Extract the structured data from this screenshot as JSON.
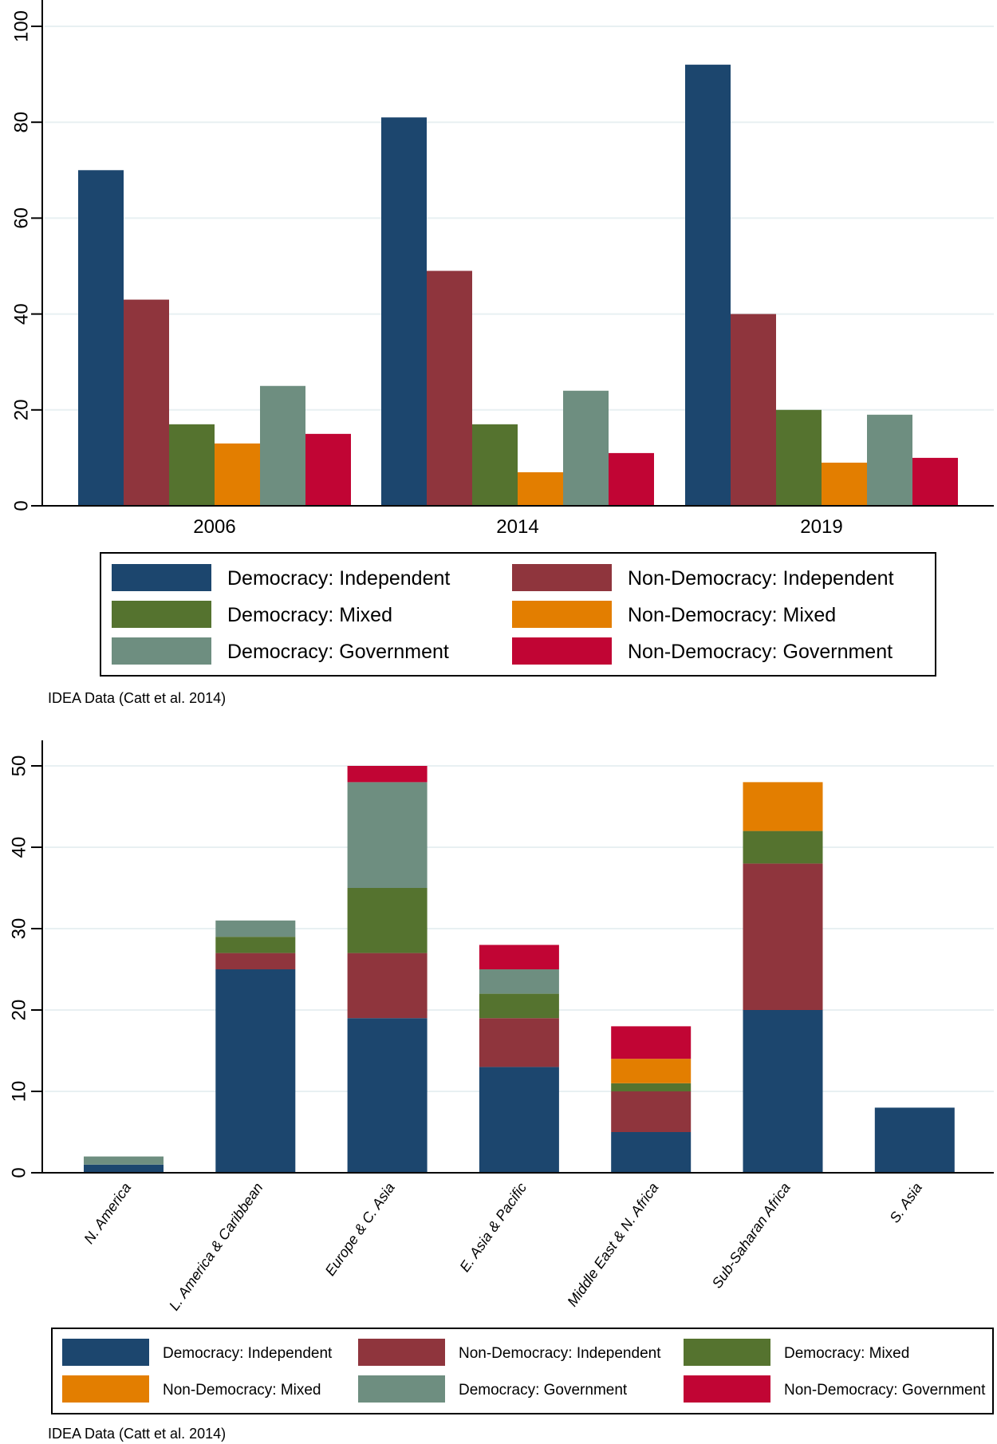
{
  "colors": {
    "democracy_independent": "#1c466e",
    "non_democracy_independent": "#8f353d",
    "democracy_mixed": "#55732f",
    "non_democracy_mixed": "#e37e00",
    "democracy_government": "#6e8e80",
    "non_democracy_government": "#c10534",
    "gridline": "#e8f0f2",
    "axis": "#000000"
  },
  "chart_data": [
    {
      "type": "bar",
      "title": "",
      "xlabel": "",
      "ylabel": "",
      "ylim": [
        0,
        100
      ],
      "yticks": [
        0,
        20,
        40,
        60,
        80,
        100
      ],
      "grid": true,
      "legend_position": "bottom",
      "categories": [
        "2006",
        "2014",
        "2019"
      ],
      "series": [
        {
          "name": "Democracy: Independent",
          "color_key": "democracy_independent",
          "values": [
            70,
            81,
            92
          ]
        },
        {
          "name": "Non-Democracy: Independent",
          "color_key": "non_democracy_independent",
          "values": [
            43,
            49,
            40
          ]
        },
        {
          "name": "Democracy: Mixed",
          "color_key": "democracy_mixed",
          "values": [
            17,
            17,
            20
          ]
        },
        {
          "name": "Non-Democracy: Mixed",
          "color_key": "non_democracy_mixed",
          "values": [
            13,
            7,
            9
          ]
        },
        {
          "name": "Democracy: Government",
          "color_key": "democracy_government",
          "values": [
            25,
            24,
            19
          ]
        },
        {
          "name": "Non-Democracy: Government",
          "color_key": "non_democracy_government",
          "values": [
            15,
            11,
            10
          ]
        }
      ],
      "legend_order": [
        0,
        1,
        2,
        3,
        4,
        5
      ],
      "caption": "IDEA Data (Catt et al. 2014)"
    },
    {
      "type": "bar",
      "stacked": true,
      "title": "",
      "xlabel": "",
      "ylabel": "",
      "ylim": [
        0,
        53
      ],
      "yticks": [
        0,
        10,
        20,
        30,
        40,
        50
      ],
      "grid": true,
      "legend_position": "bottom",
      "categories": [
        "N. America",
        "L. America & Caribbean",
        "Europe & C. Asia",
        "E. Asia & Pacific",
        "Middle East & N. Africa",
        "Sub-Saharan Africa",
        "S. Asia"
      ],
      "series": [
        {
          "name": "Democracy: Independent",
          "color_key": "democracy_independent",
          "values": [
            1,
            25,
            19,
            13,
            5,
            20,
            8
          ]
        },
        {
          "name": "Non-Democracy: Independent",
          "color_key": "non_democracy_independent",
          "values": [
            0,
            2,
            8,
            6,
            5,
            18,
            0
          ]
        },
        {
          "name": "Democracy: Mixed",
          "color_key": "democracy_mixed",
          "values": [
            0,
            2,
            8,
            3,
            1,
            4,
            0
          ]
        },
        {
          "name": "Non-Democracy: Mixed",
          "color_key": "non_democracy_mixed",
          "values": [
            0,
            0,
            0,
            0,
            3,
            6,
            0
          ]
        },
        {
          "name": "Democracy: Government",
          "color_key": "democracy_government",
          "values": [
            1,
            2,
            13,
            3,
            0,
            0,
            0
          ]
        },
        {
          "name": "Non-Democracy: Government",
          "color_key": "non_democracy_government",
          "values": [
            0,
            0,
            2,
            3,
            4,
            0,
            0
          ]
        }
      ],
      "legend_order": [
        0,
        1,
        2,
        3,
        4,
        5
      ],
      "caption": "IDEA Data (Catt et al. 2014)"
    }
  ]
}
